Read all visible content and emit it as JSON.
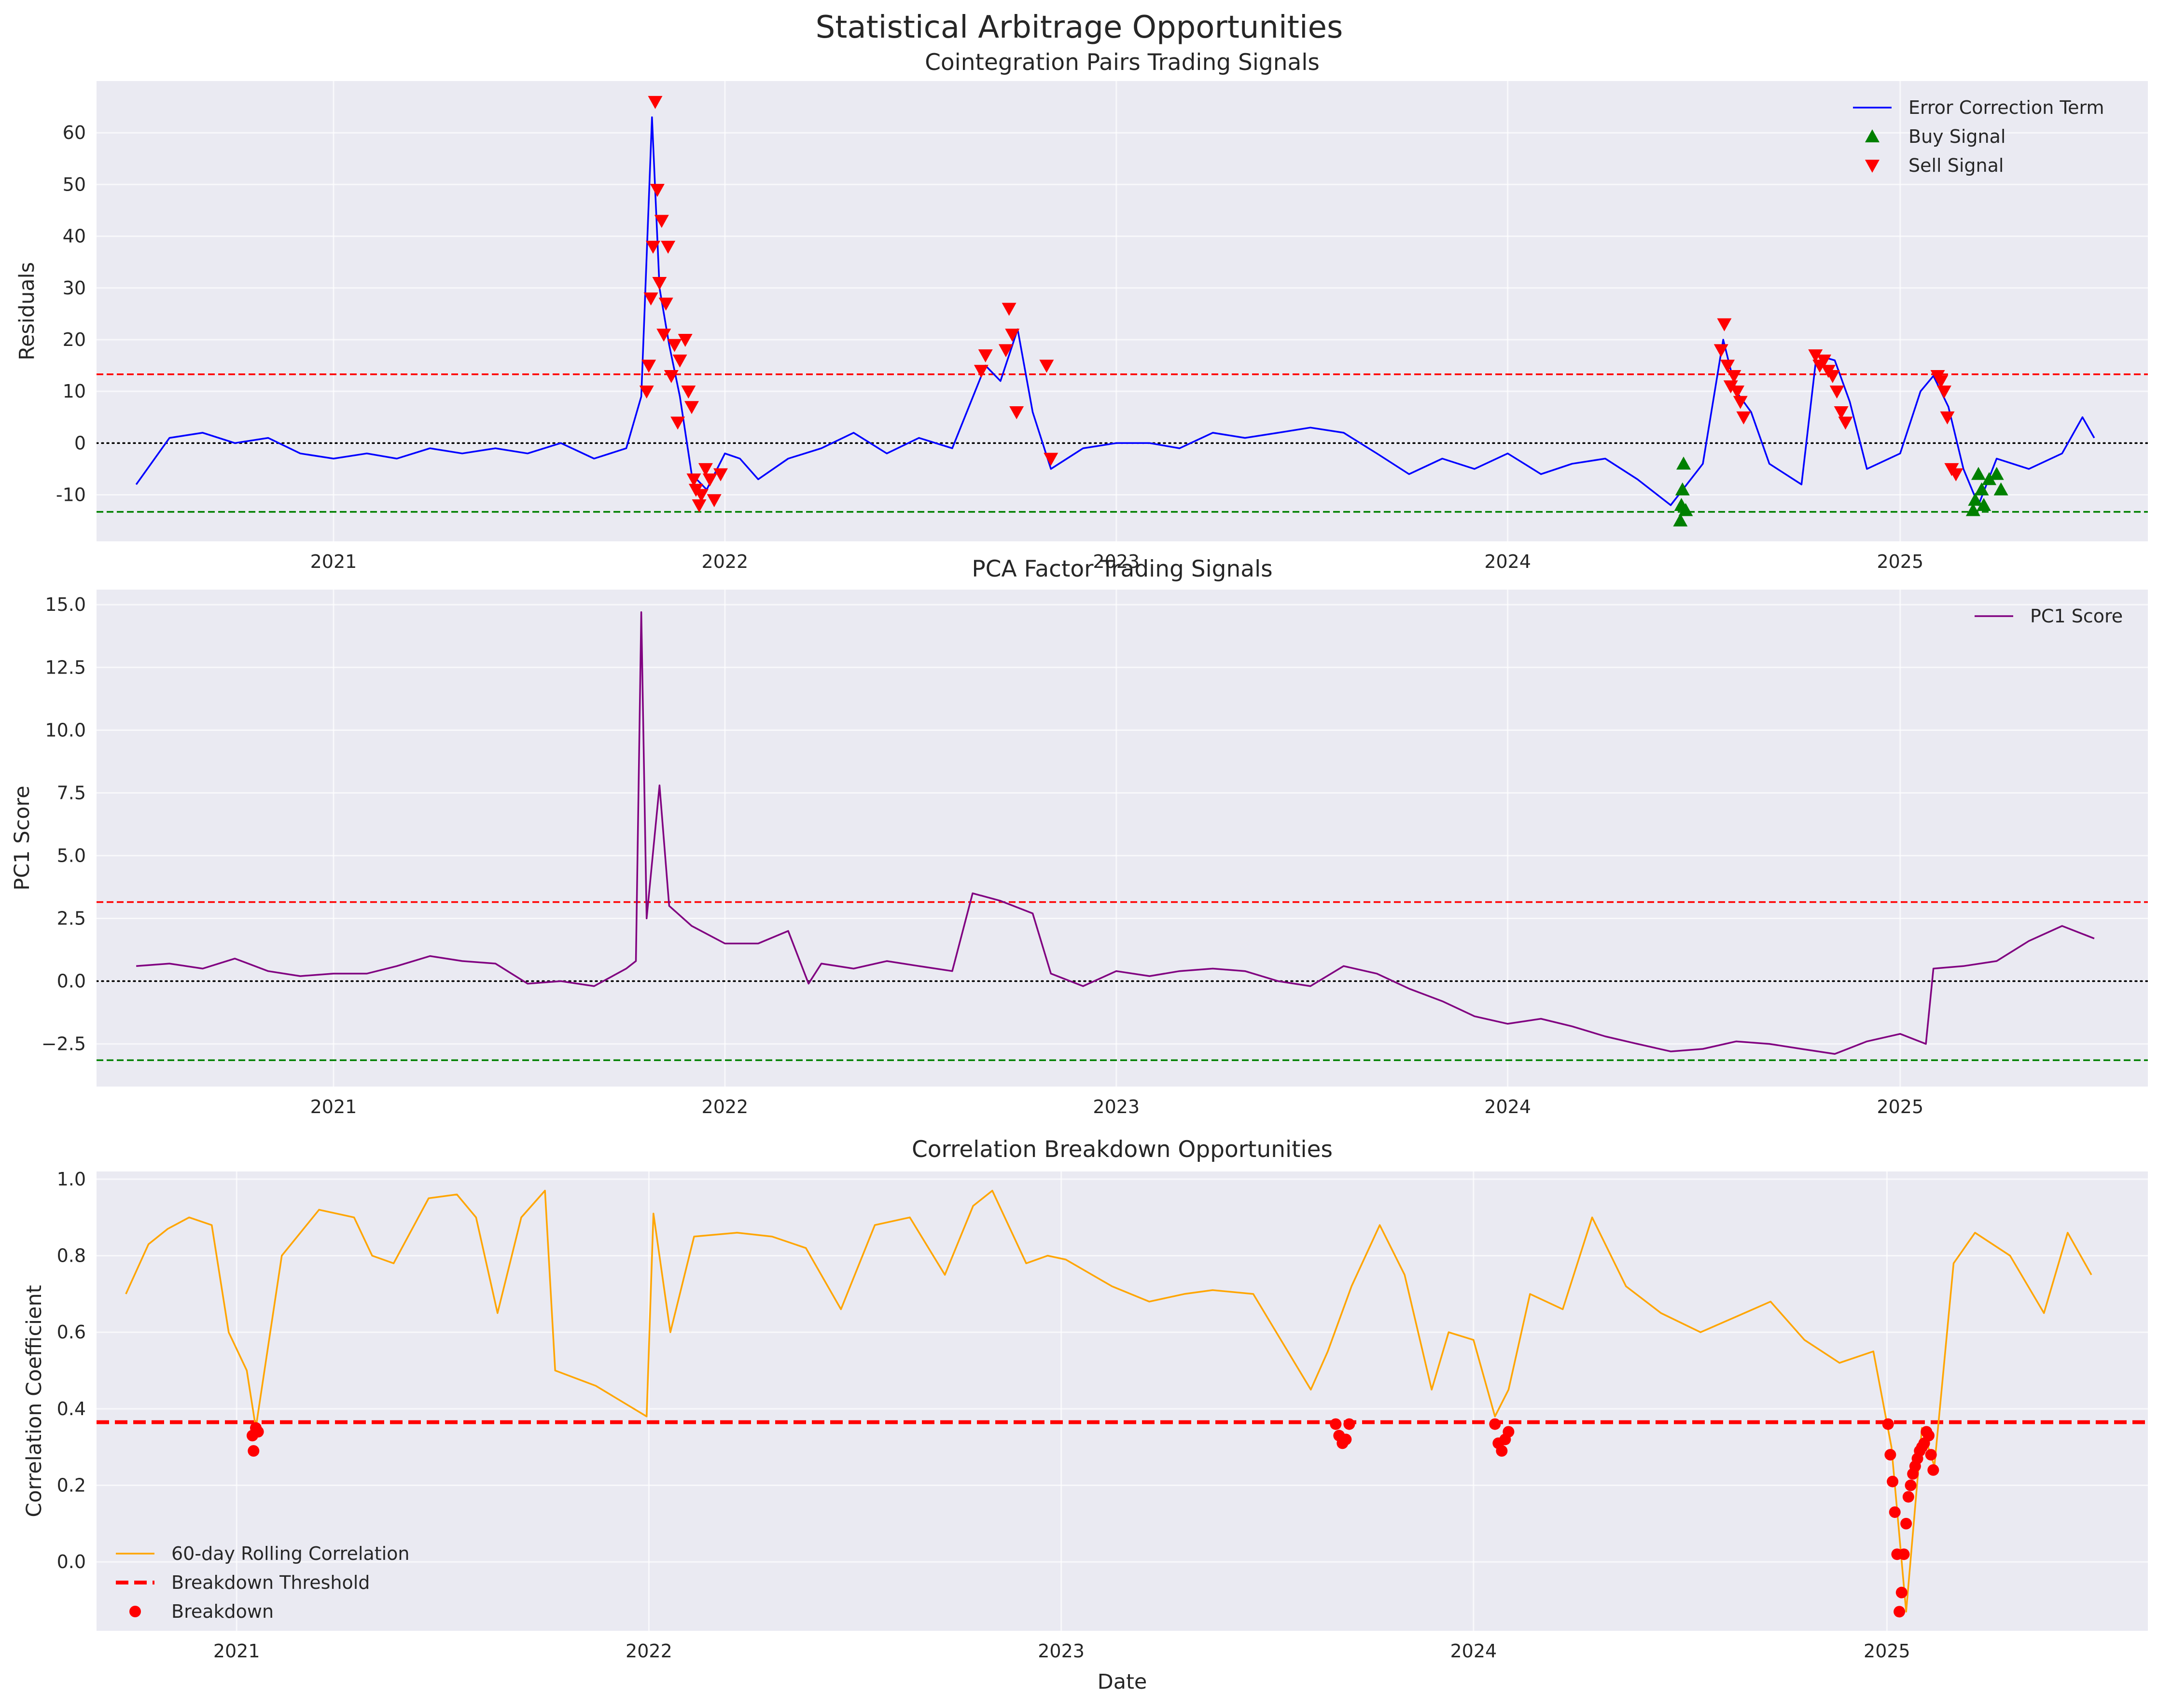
{
  "figure": {
    "suptitle": "Statistical Arbitrage Opportunities"
  },
  "chart_data": [
    {
      "type": "line",
      "title": "Cointegration Pairs Trading Signals",
      "xlabel": "",
      "ylabel": "Residuals",
      "xlim": [
        "2020-05-25",
        "2025-08-20"
      ],
      "ylim": [
        -19,
        70
      ],
      "yticks": [
        -10,
        0,
        10,
        20,
        30,
        40,
        50,
        60
      ],
      "xticks": [
        "2021",
        "2022",
        "2023",
        "2024",
        "2025"
      ],
      "grid": true,
      "legend_position": "upper right",
      "series": [
        {
          "name": "Error Correction Term",
          "color": "#0000ff",
          "x": [
            "2020-07-01",
            "2020-08-01",
            "2020-09-01",
            "2020-10-01",
            "2020-11-01",
            "2020-12-01",
            "2021-01-01",
            "2021-02-01",
            "2021-03-01",
            "2021-04-01",
            "2021-05-01",
            "2021-06-01",
            "2021-07-01",
            "2021-08-01",
            "2021-09-01",
            "2021-10-01",
            "2021-10-15",
            "2021-10-25",
            "2021-11-01",
            "2021-11-10",
            "2021-11-20",
            "2021-12-01",
            "2021-12-15",
            "2022-01-01",
            "2022-01-15",
            "2022-02-01",
            "2022-03-01",
            "2022-04-01",
            "2022-05-01",
            "2022-06-01",
            "2022-07-01",
            "2022-08-01",
            "2022-09-01",
            "2022-09-15",
            "2022-10-01",
            "2022-10-15",
            "2022-11-01",
            "2022-12-01",
            "2023-01-01",
            "2023-02-01",
            "2023-03-01",
            "2023-04-01",
            "2023-05-01",
            "2023-06-01",
            "2023-07-01",
            "2023-08-01",
            "2023-09-01",
            "2023-10-01",
            "2023-11-01",
            "2023-12-01",
            "2024-01-01",
            "2024-02-01",
            "2024-03-01",
            "2024-04-01",
            "2024-05-01",
            "2024-06-01",
            "2024-07-01",
            "2024-07-20",
            "2024-08-01",
            "2024-08-15",
            "2024-09-01",
            "2024-10-01",
            "2024-10-15",
            "2024-11-01",
            "2024-11-15",
            "2024-12-01",
            "2025-01-01",
            "2025-01-20",
            "2025-02-01",
            "2025-02-15",
            "2025-03-01",
            "2025-03-15",
            "2025-04-01",
            "2025-05-01",
            "2025-06-01",
            "2025-06-20",
            "2025-07-01"
          ],
          "y": [
            -8,
            1,
            2,
            0,
            1,
            -2,
            -3,
            -2,
            -3,
            -1,
            -2,
            -1,
            -2,
            0,
            -3,
            -1,
            9,
            63,
            30,
            19,
            9,
            -6,
            -9,
            -2,
            -3,
            -7,
            -3,
            -1,
            2,
            -2,
            1,
            -1,
            15,
            12,
            22,
            6,
            -5,
            -1,
            0,
            0,
            -1,
            2,
            1,
            2,
            3,
            2,
            -2,
            -6,
            -3,
            -5,
            -2,
            -6,
            -4,
            -3,
            -7,
            -12,
            -4,
            20,
            10,
            6,
            -4,
            -8,
            17,
            16,
            8,
            -5,
            -2,
            10,
            13,
            7,
            -5,
            -12,
            -3,
            -5,
            -2,
            5,
            1
          ]
        },
        {
          "name": "Buy Signal",
          "color": "#008000",
          "marker": "^",
          "x": [
            "2024-06-10",
            "2024-06-11",
            "2024-06-12",
            "2024-06-13",
            "2024-06-15",
            "2025-03-10",
            "2025-03-12",
            "2025-03-15",
            "2025-03-18",
            "2025-03-20",
            "2025-03-25",
            "2025-04-01",
            "2025-04-05"
          ],
          "y": [
            -15,
            -12,
            -9,
            -4,
            -13,
            -13,
            -11,
            -6,
            -9,
            -12,
            -7,
            -6,
            -9
          ]
        },
        {
          "name": "Sell Signal",
          "color": "#ff0000",
          "marker": "v",
          "x": [
            "2021-10-20",
            "2021-10-22",
            "2021-10-24",
            "2021-10-26",
            "2021-10-28",
            "2021-10-30",
            "2021-11-01",
            "2021-11-03",
            "2021-11-05",
            "2021-11-07",
            "2021-11-09",
            "2021-11-12",
            "2021-11-15",
            "2021-11-18",
            "2021-11-20",
            "2021-11-25",
            "2021-11-28",
            "2021-12-01",
            "2021-12-03",
            "2021-12-05",
            "2021-12-08",
            "2021-12-10",
            "2021-12-14",
            "2021-12-18",
            "2021-12-22",
            "2021-12-28",
            "2022-08-28",
            "2022-09-01",
            "2022-09-20",
            "2022-09-23",
            "2022-09-26",
            "2022-09-30",
            "2022-10-28",
            "2022-11-01",
            "2024-07-18",
            "2024-07-21",
            "2024-07-24",
            "2024-07-27",
            "2024-07-30",
            "2024-08-02",
            "2024-08-05",
            "2024-08-08",
            "2024-10-14",
            "2024-10-18",
            "2024-10-22",
            "2024-10-26",
            "2024-10-30",
            "2024-11-03",
            "2024-11-07",
            "2024-11-11",
            "2025-02-05",
            "2025-02-08",
            "2025-02-11",
            "2025-02-14",
            "2025-02-18",
            "2025-02-22"
          ],
          "y": [
            10,
            15,
            28,
            38,
            66,
            49,
            31,
            43,
            21,
            27,
            38,
            13,
            19,
            4,
            16,
            20,
            10,
            7,
            -7,
            -9,
            -12,
            -10,
            -5,
            -7,
            -11,
            -6,
            14,
            17,
            18,
            26,
            21,
            6,
            15,
            -3,
            18,
            23,
            15,
            11,
            13,
            10,
            8,
            5,
            17,
            15,
            16,
            14,
            13,
            10,
            6,
            4,
            13,
            12,
            10,
            5,
            -5,
            -6
          ]
        }
      ],
      "hlines": [
        {
          "y": 13.3,
          "color": "#ff0000",
          "style": "dashed"
        },
        {
          "y": 0,
          "color": "#000000",
          "style": "dotted"
        },
        {
          "y": -13.3,
          "color": "#008000",
          "style": "dashed"
        }
      ]
    },
    {
      "type": "line",
      "title": "PCA Factor Trading Signals",
      "xlabel": "",
      "ylabel": "PC1 Score",
      "xlim": [
        "2020-05-25",
        "2025-08-20"
      ],
      "ylim": [
        -4.2,
        15.6
      ],
      "yticks": [
        -2.5,
        0.0,
        2.5,
        5.0,
        7.5,
        10.0,
        12.5,
        15.0
      ],
      "ytick_labels": [
        "−2.5",
        "0.0",
        "2.5",
        "5.0",
        "7.5",
        "10.0",
        "12.5",
        "15.0"
      ],
      "xticks": [
        "2021",
        "2022",
        "2023",
        "2024",
        "2025"
      ],
      "grid": true,
      "legend_position": "upper right",
      "series": [
        {
          "name": "PC1 Score",
          "color": "#800080",
          "x": [
            "2020-07-01",
            "2020-08-01",
            "2020-09-01",
            "2020-10-01",
            "2020-11-01",
            "2020-12-01",
            "2021-01-01",
            "2021-02-01",
            "2021-03-01",
            "2021-04-01",
            "2021-05-01",
            "2021-06-01",
            "2021-07-01",
            "2021-08-01",
            "2021-09-01",
            "2021-10-01",
            "2021-10-10",
            "2021-10-15",
            "2021-10-20",
            "2021-11-01",
            "2021-11-10",
            "2021-12-01",
            "2022-01-01",
            "2022-02-01",
            "2022-03-01",
            "2022-03-20",
            "2022-04-01",
            "2022-05-01",
            "2022-06-01",
            "2022-07-01",
            "2022-08-01",
            "2022-08-20",
            "2022-09-15",
            "2022-10-15",
            "2022-11-01",
            "2022-12-01",
            "2023-01-01",
            "2023-02-01",
            "2023-03-01",
            "2023-04-01",
            "2023-05-01",
            "2023-06-01",
            "2023-07-01",
            "2023-08-01",
            "2023-09-01",
            "2023-10-01",
            "2023-11-01",
            "2023-12-01",
            "2024-01-01",
            "2024-02-01",
            "2024-03-01",
            "2024-04-01",
            "2024-05-01",
            "2024-06-01",
            "2024-07-01",
            "2024-08-01",
            "2024-09-01",
            "2024-10-01",
            "2024-11-01",
            "2024-12-01",
            "2025-01-01",
            "2025-01-25",
            "2025-02-01",
            "2025-03-01",
            "2025-04-01",
            "2025-05-01",
            "2025-06-01",
            "2025-07-01"
          ],
          "y": [
            0.6,
            0.7,
            0.5,
            0.9,
            0.4,
            0.2,
            0.3,
            0.3,
            0.6,
            1.0,
            0.8,
            0.7,
            -0.1,
            0.0,
            -0.2,
            0.5,
            0.8,
            14.7,
            2.5,
            7.8,
            3.0,
            2.2,
            1.5,
            1.5,
            2.0,
            -0.1,
            0.7,
            0.5,
            0.8,
            0.6,
            0.4,
            3.5,
            3.2,
            2.7,
            0.3,
            -0.2,
            0.4,
            0.2,
            0.4,
            0.5,
            0.4,
            0.0,
            -0.2,
            0.6,
            0.3,
            -0.3,
            -0.8,
            -1.4,
            -1.7,
            -1.5,
            -1.8,
            -2.2,
            -2.5,
            -2.8,
            -2.7,
            -2.4,
            -2.5,
            -2.7,
            -2.9,
            -2.4,
            -2.1,
            -2.5,
            0.5,
            0.6,
            0.8,
            1.6,
            2.2,
            1.7
          ]
        }
      ],
      "hlines": [
        {
          "y": 3.15,
          "color": "#ff0000",
          "style": "dashed"
        },
        {
          "y": 0,
          "color": "#000000",
          "style": "dotted"
        },
        {
          "y": -3.15,
          "color": "#008000",
          "style": "dashed"
        }
      ]
    },
    {
      "type": "line",
      "title": "Correlation Breakdown Opportunities",
      "xlabel": "Date",
      "ylabel": "Correlation Coefficient",
      "xlim": [
        "2020-08-30",
        "2025-08-20"
      ],
      "ylim": [
        -0.18,
        1.02
      ],
      "yticks": [
        0.0,
        0.2,
        0.4,
        0.6,
        0.8,
        1.0
      ],
      "ytick_labels": [
        "0.0",
        "0.2",
        "0.4",
        "0.6",
        "0.8",
        "1.0"
      ],
      "xticks": [
        "2021",
        "2022",
        "2023",
        "2024",
        "2025"
      ],
      "grid": true,
      "legend_position": "lower left",
      "series": [
        {
          "name": "60-day Rolling Correlation",
          "color": "#ffa500",
          "x": [
            "2020-09-25",
            "2020-10-15",
            "2020-11-01",
            "2020-11-20",
            "2020-12-10",
            "2020-12-25",
            "2021-01-10",
            "2021-01-18",
            "2021-02-10",
            "2021-03-15",
            "2021-04-15",
            "2021-05-01",
            "2021-05-20",
            "2021-06-20",
            "2021-07-15",
            "2021-08-01",
            "2021-08-20",
            "2021-09-10",
            "2021-10-01",
            "2021-10-10",
            "2021-11-15",
            "2021-12-30",
            "2022-01-05",
            "2022-01-20",
            "2022-02-10",
            "2022-03-20",
            "2022-04-20",
            "2022-05-20",
            "2022-06-20",
            "2022-07-20",
            "2022-08-20",
            "2022-09-20",
            "2022-10-15",
            "2022-11-01",
            "2022-12-01",
            "2022-12-20",
            "2023-01-05",
            "2023-02-15",
            "2023-03-20",
            "2023-04-20",
            "2023-05-15",
            "2023-06-20",
            "2023-08-10",
            "2023-08-25",
            "2023-09-15",
            "2023-10-10",
            "2023-11-01",
            "2023-11-25",
            "2023-12-10",
            "2024-01-01",
            "2024-01-20",
            "2024-02-01",
            "2024-02-20",
            "2024-03-20",
            "2024-04-15",
            "2024-05-15",
            "2024-06-15",
            "2024-07-20",
            "2024-08-20",
            "2024-09-20",
            "2024-10-20",
            "2024-11-20",
            "2024-12-20",
            "2025-01-05",
            "2025-01-18",
            "2025-02-01",
            "2025-02-12",
            "2025-03-01",
            "2025-03-20",
            "2025-04-20",
            "2025-05-20",
            "2025-06-10",
            "2025-07-01"
          ],
          "y": [
            0.7,
            0.83,
            0.87,
            0.9,
            0.88,
            0.6,
            0.5,
            0.35,
            0.8,
            0.92,
            0.9,
            0.8,
            0.78,
            0.95,
            0.96,
            0.9,
            0.65,
            0.9,
            0.97,
            0.5,
            0.46,
            0.38,
            0.91,
            0.6,
            0.85,
            0.86,
            0.85,
            0.82,
            0.66,
            0.88,
            0.9,
            0.75,
            0.93,
            0.97,
            0.78,
            0.8,
            0.79,
            0.72,
            0.68,
            0.7,
            0.71,
            0.7,
            0.45,
            0.55,
            0.72,
            0.88,
            0.75,
            0.45,
            0.6,
            0.58,
            0.38,
            0.45,
            0.7,
            0.66,
            0.9,
            0.72,
            0.65,
            0.6,
            0.64,
            0.68,
            0.58,
            0.52,
            0.55,
            0.3,
            -0.13,
            0.35,
            0.25,
            0.78,
            0.86,
            0.8,
            0.65,
            0.86,
            0.75
          ]
        },
        {
          "name": "Breakdown",
          "color": "#ff0000",
          "marker": "o",
          "x": [
            "2021-01-15",
            "2021-01-16",
            "2021-01-18",
            "2021-01-20",
            "2023-09-01",
            "2023-09-04",
            "2023-09-07",
            "2023-09-10",
            "2023-09-13",
            "2024-01-20",
            "2024-01-23",
            "2024-01-26",
            "2024-01-29",
            "2024-02-01",
            "2025-01-02",
            "2025-01-04",
            "2025-01-06",
            "2025-01-08",
            "2025-01-10",
            "2025-01-12",
            "2025-01-14",
            "2025-01-16",
            "2025-01-18",
            "2025-01-20",
            "2025-01-22",
            "2025-01-24",
            "2025-01-26",
            "2025-01-28",
            "2025-01-30",
            "2025-02-01",
            "2025-02-03",
            "2025-02-05",
            "2025-02-07",
            "2025-02-09",
            "2025-02-11"
          ],
          "y": [
            0.33,
            0.29,
            0.35,
            0.34,
            0.36,
            0.33,
            0.31,
            0.32,
            0.36,
            0.36,
            0.31,
            0.29,
            0.32,
            0.34,
            0.36,
            0.28,
            0.21,
            0.13,
            0.02,
            -0.13,
            -0.08,
            0.02,
            0.1,
            0.17,
            0.2,
            0.23,
            0.25,
            0.27,
            0.29,
            0.3,
            0.31,
            0.34,
            0.33,
            0.28,
            0.24
          ]
        }
      ],
      "hlines": [
        {
          "y": 0.365,
          "color": "#ff0000",
          "style": "dashed",
          "name": "Breakdown Threshold"
        }
      ]
    }
  ]
}
